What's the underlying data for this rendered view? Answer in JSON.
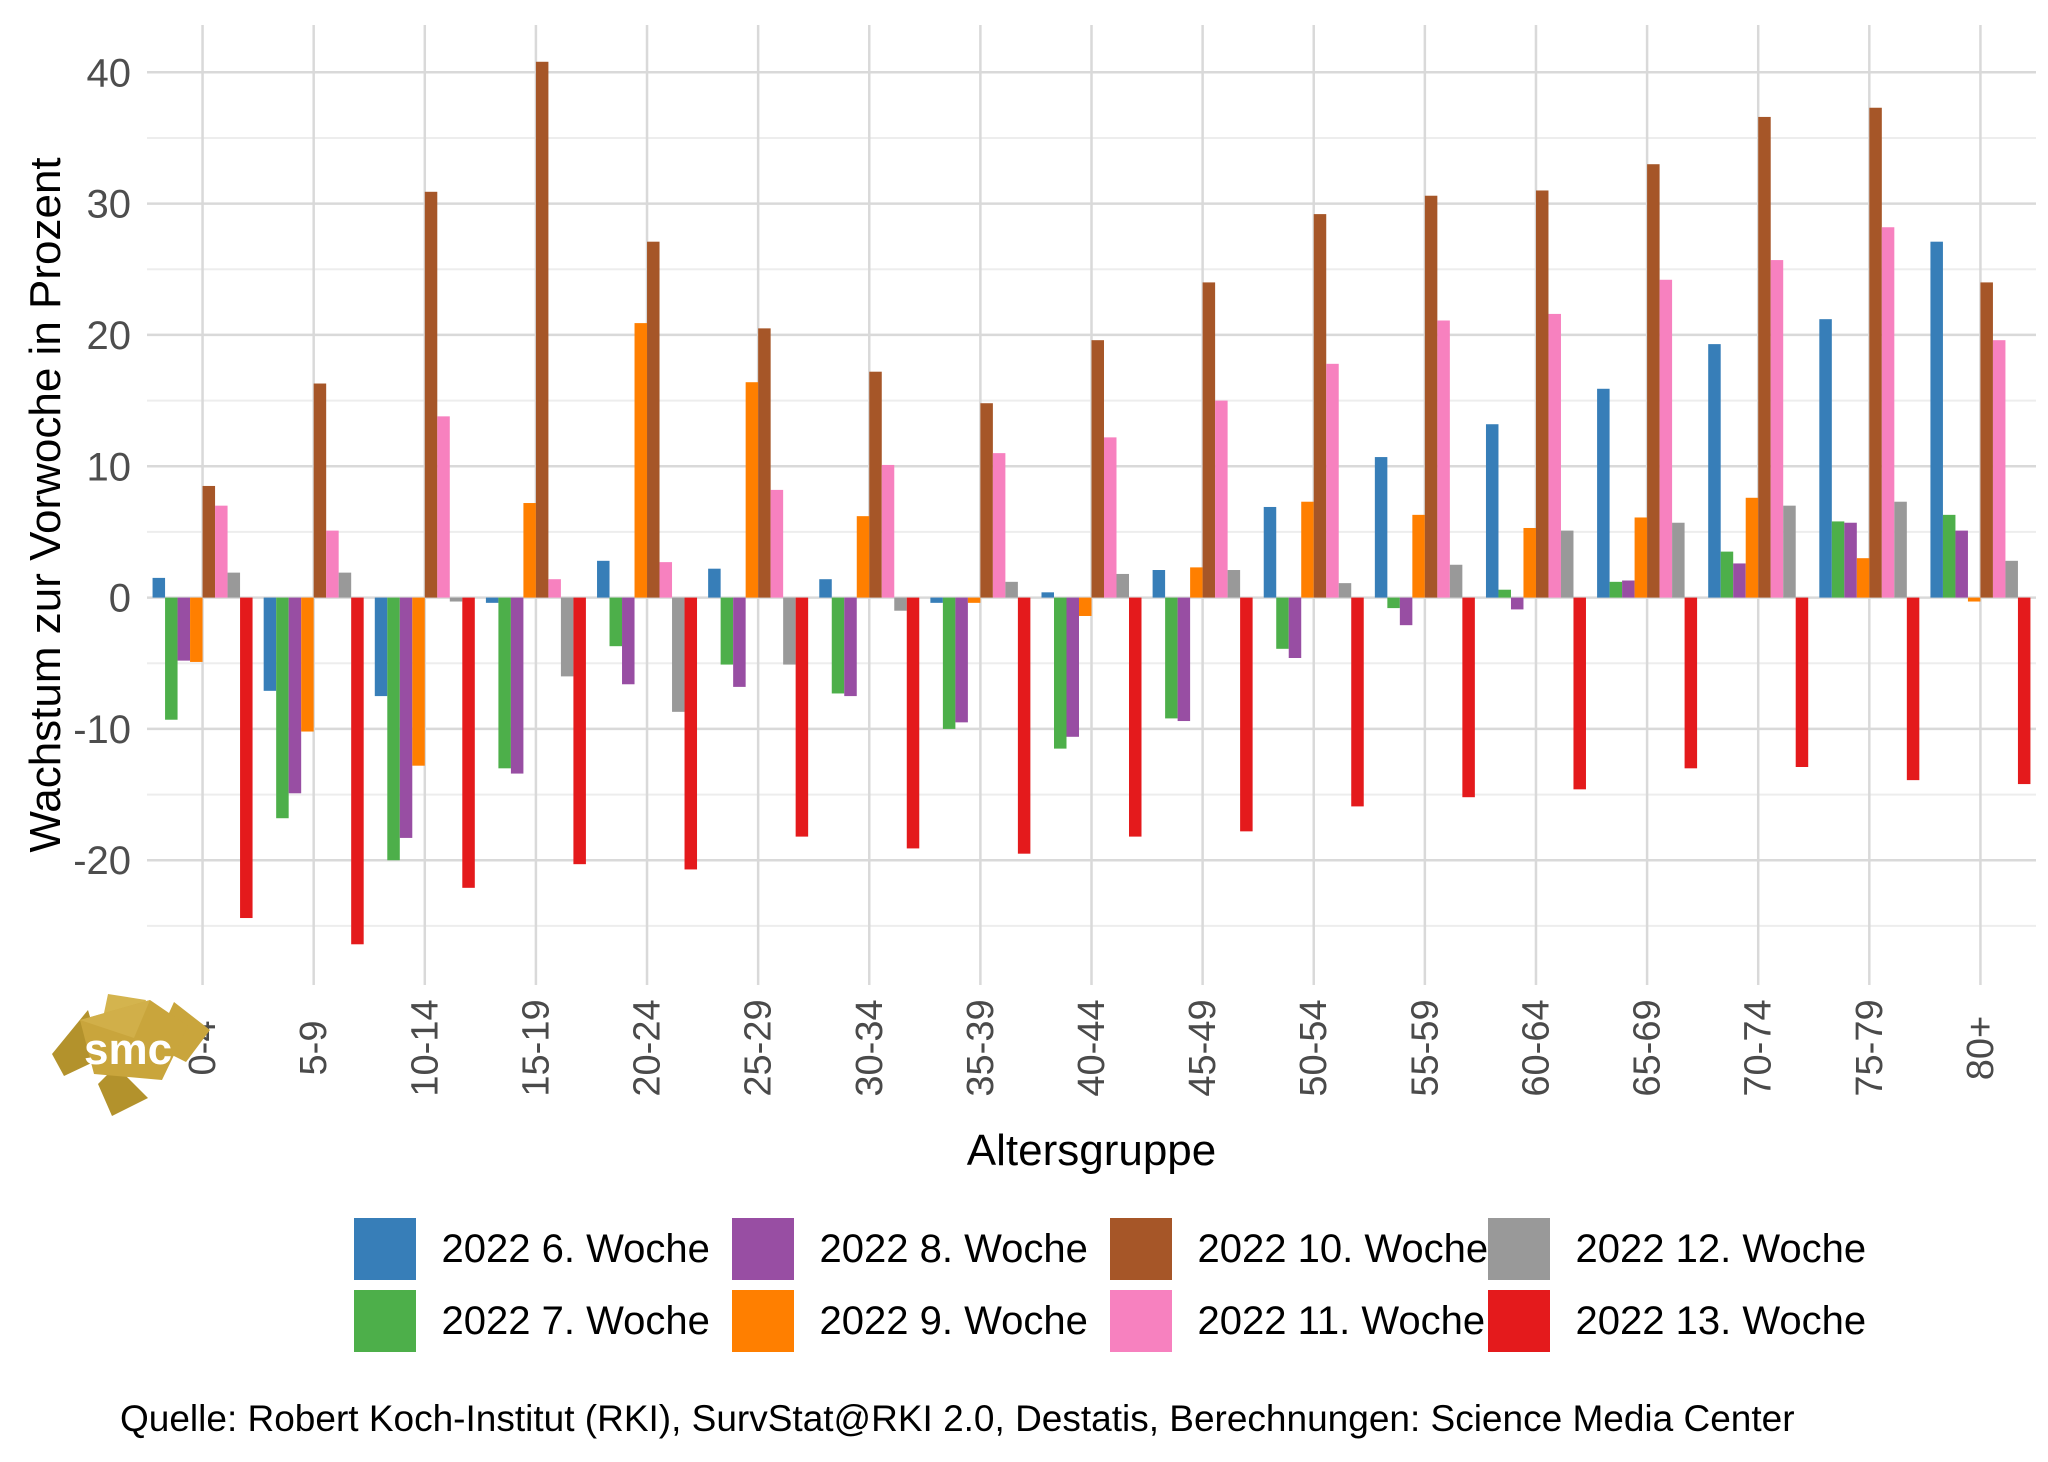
{
  "y_axis": {
    "title": "Wachstum zur Vorwoche in Prozent",
    "major_ticks": [
      40,
      30,
      20,
      10,
      0,
      -10,
      -20
    ],
    "minor_ticks": [
      35,
      25,
      15,
      5,
      -5,
      -15,
      -25
    ],
    "tick_color": "#4d4d4d"
  },
  "x_axis": {
    "title": "Altersgruppe",
    "tick_color": "#4a4a4a"
  },
  "source_note": "Quelle: Robert Koch-Institut (RKI), SurvStat@RKI 2.0, Destatis, Berechnungen: Science Media Center",
  "logo": {
    "text": "smc",
    "color": "#c9a53c"
  },
  "chart_data": {
    "type": "bar",
    "title": "",
    "xlabel": "Altersgruppe",
    "ylabel": "Wachstum zur Vorwoche in Prozent",
    "ylim": [
      -29.5,
      43.6
    ],
    "grid": true,
    "legend_position": "bottom",
    "legend_flow": "column-major, 2 rows",
    "categories": [
      "0-4",
      "5-9",
      "10-14",
      "15-19",
      "20-24",
      "25-29",
      "30-34",
      "35-39",
      "40-44",
      "45-49",
      "50-54",
      "55-59",
      "60-64",
      "65-69",
      "70-74",
      "75-79",
      "80+"
    ],
    "series": [
      {
        "name": "2022 6. Woche",
        "color": "#377eb8",
        "values": [
          1.5,
          -7.1,
          -7.5,
          -0.4,
          2.8,
          2.2,
          1.4,
          -0.4,
          0.4,
          2.1,
          6.9,
          10.7,
          13.2,
          15.9,
          19.3,
          21.2,
          27.1
        ]
      },
      {
        "name": "2022 7. Woche",
        "color": "#4daf4a",
        "values": [
          -9.3,
          -16.8,
          -20.0,
          -13.0,
          -3.7,
          -5.1,
          -7.3,
          -10.0,
          -11.5,
          -9.2,
          -3.9,
          -0.8,
          0.6,
          1.2,
          3.5,
          5.8,
          6.3
        ]
      },
      {
        "name": "2022 8. Woche",
        "color": "#984ea3",
        "values": [
          -4.8,
          -14.9,
          -18.3,
          -13.4,
          -6.6,
          -6.8,
          -7.5,
          -9.5,
          -10.6,
          -9.4,
          -4.6,
          -2.1,
          -0.9,
          1.3,
          2.6,
          5.7,
          5.1
        ]
      },
      {
        "name": "2022 9. Woche",
        "color": "#ff7f00",
        "values": [
          -4.9,
          -10.2,
          -12.8,
          7.2,
          20.9,
          16.4,
          6.2,
          -0.4,
          -1.4,
          2.3,
          7.3,
          6.3,
          5.3,
          6.1,
          7.6,
          3.0,
          -0.3
        ]
      },
      {
        "name": "2022 10. Woche",
        "color": "#a65628",
        "values": [
          8.5,
          16.3,
          30.9,
          40.8,
          27.1,
          20.5,
          17.2,
          14.8,
          19.6,
          24.0,
          29.2,
          30.6,
          31.0,
          33.0,
          36.6,
          37.3,
          24.0
        ]
      },
      {
        "name": "2022 11. Woche",
        "color": "#f781bf",
        "values": [
          7.0,
          5.1,
          13.8,
          1.4,
          2.7,
          8.2,
          10.1,
          11.0,
          12.2,
          15.0,
          17.8,
          21.1,
          21.6,
          24.2,
          25.7,
          28.2,
          19.6
        ]
      },
      {
        "name": "2022 12. Woche",
        "color": "#999999",
        "values": [
          1.9,
          1.9,
          -0.3,
          -6.0,
          -8.7,
          -5.1,
          -1.0,
          1.2,
          1.8,
          2.1,
          1.1,
          2.5,
          5.1,
          5.7,
          7.0,
          7.3,
          2.8
        ]
      },
      {
        "name": "2022 13. Woche",
        "color": "#e41a1c",
        "values": [
          -24.4,
          -26.4,
          -22.1,
          -20.3,
          -20.7,
          -18.2,
          -19.1,
          -19.5,
          -18.2,
          -17.8,
          -15.9,
          -15.2,
          -14.6,
          -13.0,
          -12.9,
          -13.9,
          -14.2
        ]
      }
    ]
  }
}
